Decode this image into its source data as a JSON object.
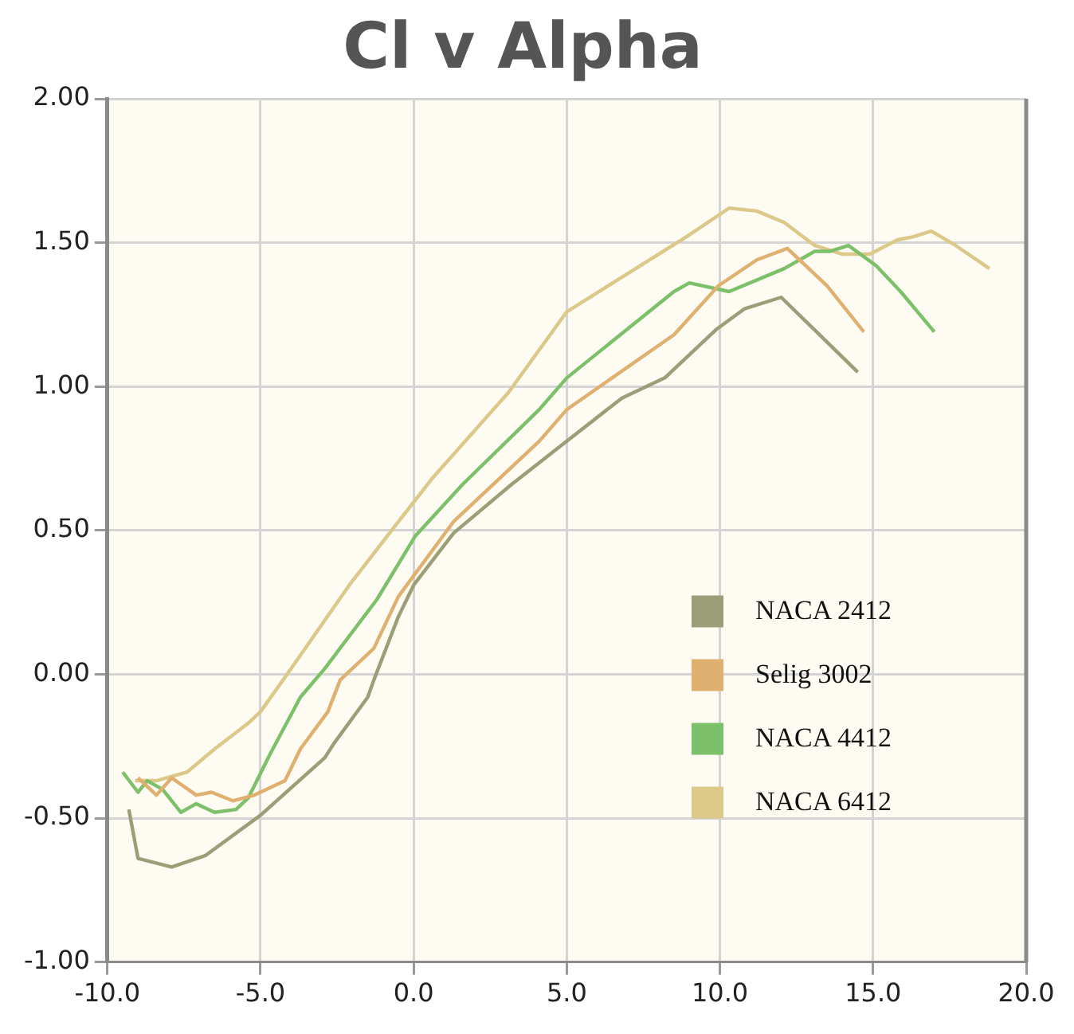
{
  "chart_data": {
    "type": "line",
    "title": "Cl v Alpha",
    "xlim": [
      -10,
      20
    ],
    "ylim": [
      -1,
      2
    ],
    "xticks": [
      {
        "value": -10,
        "label": "-10.0"
      },
      {
        "value": -5,
        "label": "-5.0"
      },
      {
        "value": 0,
        "label": "0.0"
      },
      {
        "value": 5,
        "label": "5.0"
      },
      {
        "value": 10,
        "label": "10.0"
      },
      {
        "value": 15,
        "label": "15.0"
      },
      {
        "value": 20,
        "label": "20.0"
      }
    ],
    "yticks": [
      {
        "value": -1,
        "label": "-1.00"
      },
      {
        "value": -0.5,
        "label": "-0.50"
      },
      {
        "value": 0,
        "label": "0.00"
      },
      {
        "value": 0.5,
        "label": "0.50"
      },
      {
        "value": 1,
        "label": "1.00"
      },
      {
        "value": 1.5,
        "label": "1.50"
      },
      {
        "value": 2,
        "label": "2.00"
      }
    ],
    "grid": true,
    "legend": "bottom right",
    "marker": "none",
    "line_style": "solid",
    "series": [
      {
        "name": "NACA 2412",
        "color": "#9a9f78",
        "x": [
          -9.3,
          -9.0,
          -7.9,
          -6.8,
          -5.0,
          -2.9,
          -2.6,
          -1.5,
          -1.3,
          -0.5,
          0,
          1.3,
          3.2,
          5.0,
          6.8,
          8.2,
          9.9,
          10.8,
          12.0,
          14.5
        ],
        "values": [
          -0.47,
          -0.64,
          -0.67,
          -0.63,
          -0.49,
          -0.29,
          -0.24,
          -0.08,
          -0.02,
          0.2,
          0.31,
          0.49,
          0.66,
          0.81,
          0.96,
          1.03,
          1.2,
          1.27,
          1.31,
          1.05
        ]
      },
      {
        "name": "Selig 3002",
        "color": "#e0b070",
        "x": [
          -9.0,
          -8.4,
          -7.9,
          -7.1,
          -6.6,
          -5.9,
          -5.2,
          -4.2,
          -3.7,
          -2.8,
          -2.4,
          -1.3,
          -0.5,
          1.3,
          4.1,
          5.0,
          8.5,
          9.95,
          11.2,
          12.2,
          13.5,
          14.7
        ],
        "values": [
          -0.36,
          -0.42,
          -0.36,
          -0.42,
          -0.41,
          -0.44,
          -0.42,
          -0.37,
          -0.26,
          -0.13,
          -0.02,
          0.09,
          0.27,
          0.53,
          0.81,
          0.92,
          1.18,
          1.35,
          1.44,
          1.48,
          1.35,
          1.19
        ]
      },
      {
        "name": "NACA 4412",
        "color": "#7cc06a",
        "x": [
          -9.5,
          -9.0,
          -8.7,
          -8.2,
          -7.6,
          -7.1,
          -6.5,
          -5.8,
          -5.4,
          -4.7,
          -3.7,
          -2.9,
          -1.2,
          0.05,
          1.6,
          4.1,
          5.0,
          8.5,
          9.0,
          10.3,
          12.1,
          13.1,
          13.6,
          14.2,
          15.1,
          15.9,
          17.0
        ],
        "values": [
          -0.34,
          -0.41,
          -0.37,
          -0.4,
          -0.48,
          -0.45,
          -0.48,
          -0.47,
          -0.43,
          -0.28,
          -0.08,
          0.02,
          0.26,
          0.48,
          0.66,
          0.92,
          1.03,
          1.33,
          1.36,
          1.33,
          1.41,
          1.47,
          1.47,
          1.49,
          1.42,
          1.33,
          1.19
        ]
      },
      {
        "name": "NACA 6412",
        "color": "#dcc888",
        "x": [
          -9.1,
          -8.4,
          -7.4,
          -6.5,
          -5.4,
          -5.0,
          -4.0,
          -2.1,
          -0.5,
          0.6,
          3.1,
          5.0,
          8.9,
          10.3,
          11.2,
          12.1,
          13.1,
          14.0,
          14.9,
          15.8,
          16.3,
          16.9,
          17.7,
          18.8
        ],
        "values": [
          -0.37,
          -0.37,
          -0.34,
          -0.26,
          -0.17,
          -0.13,
          0.02,
          0.31,
          0.53,
          0.68,
          0.98,
          1.26,
          1.52,
          1.62,
          1.61,
          1.57,
          1.49,
          1.46,
          1.46,
          1.51,
          1.52,
          1.54,
          1.49,
          1.41
        ]
      }
    ]
  }
}
